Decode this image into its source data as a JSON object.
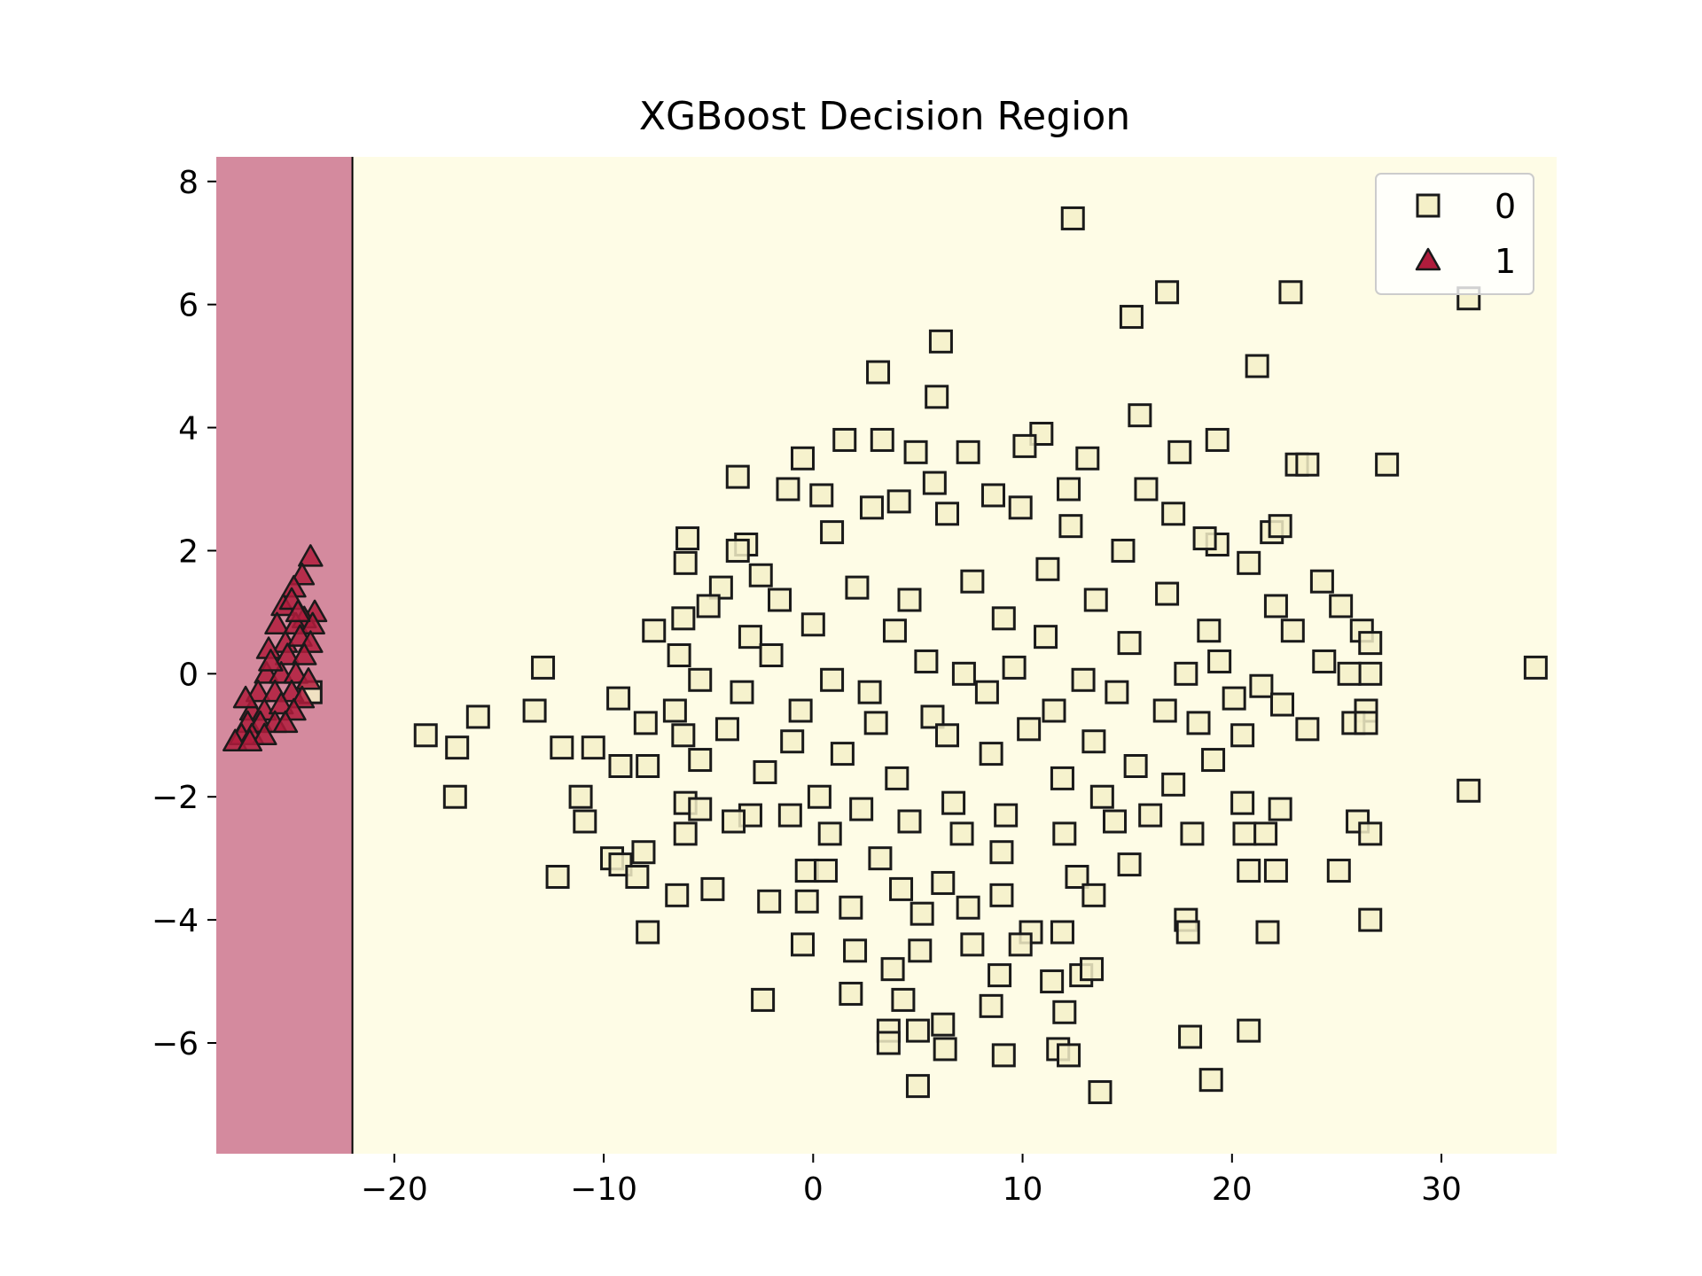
{
  "colors": {
    "region_class_0": "#fefce6",
    "region_class_1": "#d48a9e",
    "marker_class_0_fill": "#f5f0c8",
    "marker_class_1_fill": "#b01c3c",
    "marker_edge": "#1a1a1a",
    "boundary_line": "#000000"
  },
  "chart_data": {
    "type": "scatter",
    "title": "XGBoost Decision Region",
    "xlabel": "",
    "ylabel": "",
    "xlim": [
      -28.5,
      35.5
    ],
    "ylim": [
      -7.8,
      8.4
    ],
    "x_ticks": [
      -20,
      -10,
      0,
      10,
      20,
      30
    ],
    "x_tick_labels": [
      "−20",
      "−10",
      "0",
      "10",
      "20",
      "30"
    ],
    "y_ticks": [
      -6,
      -4,
      -2,
      0,
      2,
      4,
      6,
      8
    ],
    "y_tick_labels": [
      "−6",
      "−4",
      "−2",
      "0",
      "2",
      "4",
      "6",
      "8"
    ],
    "decision_regions": [
      {
        "class": "1",
        "x_range": [
          -28.5,
          -22
        ]
      },
      {
        "class": "0",
        "x_range": [
          -22,
          35.5
        ]
      }
    ],
    "decision_boundary_x": -22,
    "legend": {
      "placement": "top-right",
      "entries": [
        {
          "label": "0",
          "marker": "square"
        },
        {
          "label": "1",
          "marker": "triangle"
        }
      ]
    },
    "series": [
      {
        "name": "0",
        "marker": "square",
        "points": [
          [
            12.4,
            7.4
          ],
          [
            16.9,
            6.2
          ],
          [
            22.8,
            6.2
          ],
          [
            31.3,
            6.1
          ],
          [
            15.2,
            5.8
          ],
          [
            6.1,
            5.4
          ],
          [
            21.2,
            5.0
          ],
          [
            3.1,
            4.9
          ],
          [
            5.9,
            4.5
          ],
          [
            15.6,
            4.2
          ],
          [
            10.9,
            3.9
          ],
          [
            19.3,
            3.8
          ],
          [
            1.5,
            3.8
          ],
          [
            3.3,
            3.8
          ],
          [
            10.1,
            3.7
          ],
          [
            17.5,
            3.6
          ],
          [
            4.9,
            3.6
          ],
          [
            7.4,
            3.6
          ],
          [
            13.1,
            3.5
          ],
          [
            -0.5,
            3.5
          ],
          [
            23.1,
            3.4
          ],
          [
            23.6,
            3.4
          ],
          [
            27.4,
            3.4
          ],
          [
            -3.6,
            3.2
          ],
          [
            5.8,
            3.1
          ],
          [
            12.2,
            3.0
          ],
          [
            15.9,
            3.0
          ],
          [
            -1.2,
            3.0
          ],
          [
            0.4,
            2.9
          ],
          [
            8.6,
            2.9
          ],
          [
            4.1,
            2.8
          ],
          [
            9.9,
            2.7
          ],
          [
            17.2,
            2.6
          ],
          [
            2.8,
            2.7
          ],
          [
            6.4,
            2.6
          ],
          [
            21.9,
            2.3
          ],
          [
            -6.0,
            2.2
          ],
          [
            -3.2,
            2.1
          ],
          [
            -3.6,
            2.0
          ],
          [
            19.3,
            2.1
          ],
          [
            0.9,
            2.3
          ],
          [
            12.3,
            2.4
          ],
          [
            18.7,
            2.2
          ],
          [
            14.8,
            2.0
          ],
          [
            22.3,
            2.4
          ],
          [
            -6.1,
            1.8
          ],
          [
            -2.5,
            1.6
          ],
          [
            11.2,
            1.7
          ],
          [
            20.8,
            1.8
          ],
          [
            24.3,
            1.5
          ],
          [
            -4.4,
            1.4
          ],
          [
            2.1,
            1.4
          ],
          [
            7.6,
            1.5
          ],
          [
            16.9,
            1.3
          ],
          [
            -5.0,
            1.1
          ],
          [
            -1.6,
            1.2
          ],
          [
            4.6,
            1.2
          ],
          [
            13.5,
            1.2
          ],
          [
            22.1,
            1.1
          ],
          [
            25.2,
            1.1
          ],
          [
            -6.2,
            0.9
          ],
          [
            0.0,
            0.8
          ],
          [
            9.1,
            0.9
          ],
          [
            18.9,
            0.7
          ],
          [
            -7.6,
            0.7
          ],
          [
            -3.0,
            0.6
          ],
          [
            3.9,
            0.7
          ],
          [
            11.1,
            0.6
          ],
          [
            15.1,
            0.5
          ],
          [
            22.9,
            0.7
          ],
          [
            26.2,
            0.7
          ],
          [
            26.6,
            0.5
          ],
          [
            -6.4,
            0.3
          ],
          [
            -2.0,
            0.3
          ],
          [
            5.4,
            0.2
          ],
          [
            9.6,
            0.1
          ],
          [
            19.4,
            0.2
          ],
          [
            24.4,
            0.2
          ],
          [
            -12.9,
            0.1
          ],
          [
            34.5,
            0.1
          ],
          [
            26.6,
            0.0
          ],
          [
            25.6,
            0.0
          ],
          [
            -5.4,
            -0.1
          ],
          [
            0.9,
            -0.1
          ],
          [
            7.2,
            0.0
          ],
          [
            12.9,
            -0.1
          ],
          [
            17.8,
            0.0
          ],
          [
            21.4,
            -0.2
          ],
          [
            -9.3,
            -0.4
          ],
          [
            -3.4,
            -0.3
          ],
          [
            2.7,
            -0.3
          ],
          [
            8.3,
            -0.3
          ],
          [
            14.5,
            -0.3
          ],
          [
            20.1,
            -0.4
          ],
          [
            26.4,
            -0.6
          ],
          [
            -6.6,
            -0.6
          ],
          [
            -0.6,
            -0.6
          ],
          [
            5.7,
            -0.7
          ],
          [
            11.5,
            -0.6
          ],
          [
            16.8,
            -0.6
          ],
          [
            22.4,
            -0.5
          ],
          [
            -13.3,
            -0.6
          ],
          [
            -16.0,
            -0.7
          ],
          [
            -8.0,
            -0.8
          ],
          [
            -4.1,
            -0.9
          ],
          [
            3.0,
            -0.8
          ],
          [
            10.3,
            -0.9
          ],
          [
            18.4,
            -0.8
          ],
          [
            23.6,
            -0.9
          ],
          [
            25.8,
            -0.8
          ],
          [
            26.4,
            -0.8
          ],
          [
            -18.5,
            -1.0
          ],
          [
            -6.2,
            -1.0
          ],
          [
            -1.0,
            -1.1
          ],
          [
            6.4,
            -1.0
          ],
          [
            13.4,
            -1.1
          ],
          [
            20.5,
            -1.0
          ],
          [
            -17.0,
            -1.2
          ],
          [
            -12.0,
            -1.2
          ],
          [
            -10.5,
            -1.2
          ],
          [
            -5.4,
            -1.4
          ],
          [
            1.4,
            -1.3
          ],
          [
            8.5,
            -1.3
          ],
          [
            15.4,
            -1.5
          ],
          [
            19.1,
            -1.4
          ],
          [
            -9.2,
            -1.5
          ],
          [
            -7.9,
            -1.5
          ],
          [
            -2.3,
            -1.6
          ],
          [
            4.0,
            -1.7
          ],
          [
            11.9,
            -1.7
          ],
          [
            17.2,
            -1.8
          ],
          [
            31.3,
            -1.9
          ],
          [
            -17.1,
            -2.0
          ],
          [
            -11.1,
            -2.0
          ],
          [
            -6.1,
            -2.1
          ],
          [
            0.3,
            -2.0
          ],
          [
            6.7,
            -2.1
          ],
          [
            13.8,
            -2.0
          ],
          [
            20.5,
            -2.1
          ],
          [
            -5.4,
            -2.2
          ],
          [
            -3.0,
            -2.3
          ],
          [
            2.3,
            -2.2
          ],
          [
            9.2,
            -2.3
          ],
          [
            16.1,
            -2.3
          ],
          [
            22.3,
            -2.2
          ],
          [
            -10.9,
            -2.4
          ],
          [
            -3.8,
            -2.4
          ],
          [
            -1.1,
            -2.3
          ],
          [
            4.6,
            -2.4
          ],
          [
            14.4,
            -2.4
          ],
          [
            26.0,
            -2.4
          ],
          [
            -6.1,
            -2.6
          ],
          [
            0.8,
            -2.6
          ],
          [
            7.1,
            -2.6
          ],
          [
            12.0,
            -2.6
          ],
          [
            18.1,
            -2.6
          ],
          [
            20.6,
            -2.6
          ],
          [
            21.6,
            -2.6
          ],
          [
            26.6,
            -2.6
          ],
          [
            -8.1,
            -2.9
          ],
          [
            -9.6,
            -3.0
          ],
          [
            -9.2,
            -3.1
          ],
          [
            -0.3,
            -3.2
          ],
          [
            3.2,
            -3.0
          ],
          [
            9.0,
            -2.9
          ],
          [
            15.1,
            -3.1
          ],
          [
            20.8,
            -3.2
          ],
          [
            22.1,
            -3.2
          ],
          [
            25.1,
            -3.2
          ],
          [
            -8.4,
            -3.3
          ],
          [
            -12.2,
            -3.3
          ],
          [
            0.6,
            -3.2
          ],
          [
            6.2,
            -3.4
          ],
          [
            12.6,
            -3.3
          ],
          [
            -6.5,
            -3.6
          ],
          [
            -4.8,
            -3.5
          ],
          [
            4.2,
            -3.5
          ],
          [
            7.4,
            -3.8
          ],
          [
            13.4,
            -3.6
          ],
          [
            -2.1,
            -3.7
          ],
          [
            -0.3,
            -3.7
          ],
          [
            1.8,
            -3.8
          ],
          [
            5.2,
            -3.9
          ],
          [
            9.0,
            -3.6
          ],
          [
            17.8,
            -4.0
          ],
          [
            -7.9,
            -4.2
          ],
          [
            10.4,
            -4.2
          ],
          [
            11.9,
            -4.2
          ],
          [
            17.9,
            -4.2
          ],
          [
            21.7,
            -4.2
          ],
          [
            26.6,
            -4.0
          ],
          [
            -0.5,
            -4.4
          ],
          [
            2.0,
            -4.5
          ],
          [
            5.1,
            -4.5
          ],
          [
            7.6,
            -4.4
          ],
          [
            9.9,
            -4.4
          ],
          [
            3.8,
            -4.8
          ],
          [
            12.8,
            -4.9
          ],
          [
            13.3,
            -4.8
          ],
          [
            8.9,
            -4.9
          ],
          [
            11.4,
            -5.0
          ],
          [
            1.8,
            -5.2
          ],
          [
            -2.4,
            -5.3
          ],
          [
            4.3,
            -5.3
          ],
          [
            8.5,
            -5.4
          ],
          [
            12.0,
            -5.5
          ],
          [
            3.6,
            -5.8
          ],
          [
            5.0,
            -5.8
          ],
          [
            6.2,
            -5.7
          ],
          [
            18.0,
            -5.9
          ],
          [
            20.8,
            -5.8
          ],
          [
            3.6,
            -6.0
          ],
          [
            6.3,
            -6.1
          ],
          [
            9.1,
            -6.2
          ],
          [
            11.7,
            -6.1
          ],
          [
            12.2,
            -6.2
          ],
          [
            19.0,
            -6.6
          ],
          [
            5.0,
            -6.7
          ],
          [
            13.7,
            -6.8
          ],
          [
            -24.0,
            -0.3
          ]
        ]
      },
      {
        "name": "1",
        "marker": "triangle",
        "points": [
          [
            -24.0,
            1.9
          ],
          [
            -24.4,
            1.6
          ],
          [
            -24.8,
            1.4
          ],
          [
            -25.3,
            1.1
          ],
          [
            -24.9,
            1.2
          ],
          [
            -23.8,
            1.0
          ],
          [
            -24.3,
            0.9
          ],
          [
            -25.6,
            0.8
          ],
          [
            -24.7,
            0.8
          ],
          [
            -23.9,
            0.8
          ],
          [
            -25.2,
            0.5
          ],
          [
            -24.5,
            0.6
          ],
          [
            -24.0,
            0.5
          ],
          [
            -26.0,
            0.4
          ],
          [
            -25.1,
            0.3
          ],
          [
            -24.3,
            0.3
          ],
          [
            -26.1,
            0.0
          ],
          [
            -25.4,
            0.0
          ],
          [
            -24.7,
            0.0
          ],
          [
            -24.1,
            -0.1
          ],
          [
            -26.5,
            -0.3
          ],
          [
            -25.7,
            -0.3
          ],
          [
            -24.9,
            -0.3
          ],
          [
            -24.4,
            -0.4
          ],
          [
            -26.8,
            -0.6
          ],
          [
            -26.2,
            -0.6
          ],
          [
            -25.4,
            -0.5
          ],
          [
            -24.8,
            -0.6
          ],
          [
            -27.0,
            -0.8
          ],
          [
            -26.4,
            -0.8
          ],
          [
            -25.7,
            -0.8
          ],
          [
            -25.2,
            -0.8
          ],
          [
            -27.3,
            -1.0
          ],
          [
            -26.8,
            -1.0
          ],
          [
            -26.2,
            -1.0
          ],
          [
            -27.6,
            -1.1
          ],
          [
            -26.9,
            -1.1
          ],
          [
            -27.1,
            -0.4
          ],
          [
            -25.9,
            0.2
          ],
          [
            -24.6,
            1.0
          ]
        ]
      }
    ]
  }
}
